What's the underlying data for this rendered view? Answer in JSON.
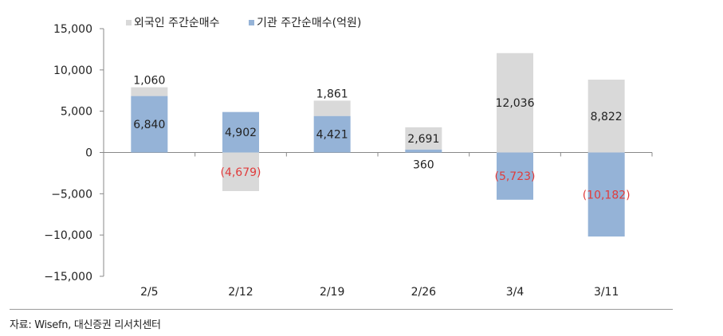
{
  "chart_data": {
    "type": "bar",
    "stacked": true,
    "categories": [
      "2/5",
      "2/12",
      "2/19",
      "2/26",
      "3/4",
      "3/11"
    ],
    "series": [
      {
        "name": "외국인 주간순매수",
        "color": "#d9d9d9",
        "values": [
          1060,
          -4679,
          1861,
          2691,
          12036,
          8822
        ],
        "labels": [
          "1,060",
          "(4,679)",
          "1,861",
          "2,691",
          "12,036",
          "8,822"
        ]
      },
      {
        "name": "기관 주간순매수(억원)",
        "color": "#95b3d7",
        "values": [
          6840,
          4902,
          4421,
          360,
          -5723,
          -10182
        ],
        "labels": [
          "6,840",
          "4,902",
          "4,421",
          "360",
          "(5,723)",
          "(10,182)"
        ]
      }
    ],
    "ylim": [
      -15000,
      15000
    ],
    "yticks": [
      -15000,
      -10000,
      -5000,
      0,
      5000,
      10000,
      15000
    ],
    "ytick_labels": [
      "−15,000",
      "−10,000",
      "−5,000",
      "0",
      "5,000",
      "10,000",
      "15,000"
    ],
    "negative_label_color": "#e03c3c",
    "legend_position": "top",
    "grid": false
  },
  "source": "자료: Wisefn, 대신증권 리서치센터"
}
